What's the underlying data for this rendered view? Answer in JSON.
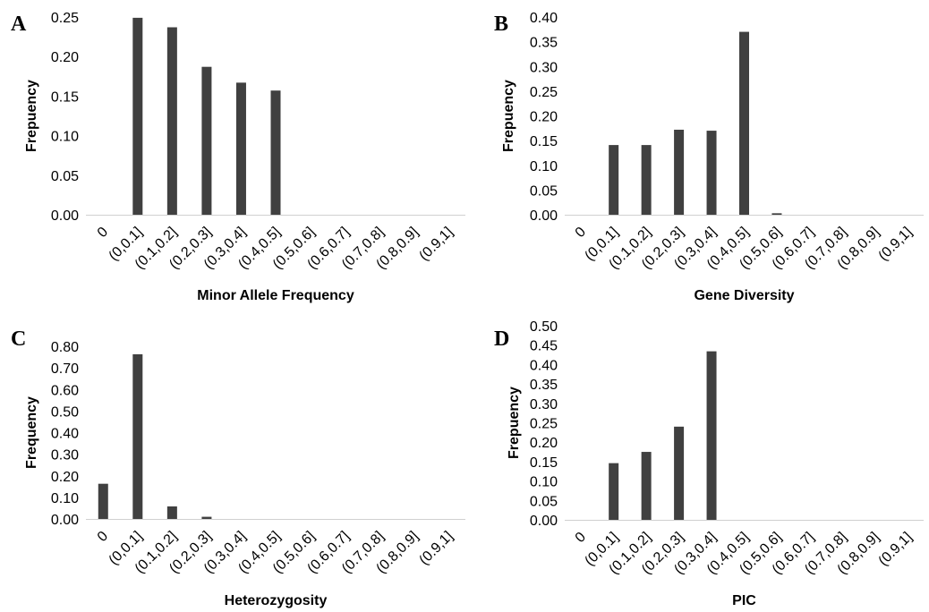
{
  "chart_data": [
    {
      "panel": "A",
      "type": "bar",
      "categories": [
        "0",
        "(0,0.1]",
        "(0.1,0.2]",
        "(0.2,0.3]",
        "(0.3,0.4]",
        "(0.4,0.5]",
        "(0.5,0.6]",
        "(0.6,0.7]",
        "(0.7,0.8]",
        "(0.8,0.9]",
        "(0.9,1]"
      ],
      "values": [
        0,
        0.249,
        0.237,
        0.187,
        0.167,
        0.157,
        0,
        0,
        0,
        0,
        0
      ],
      "xlabel": "Minor Allele Frequency",
      "ylabel": "Frepuency",
      "ylim": [
        0,
        0.25
      ],
      "yticks": [
        "0.00",
        "0.05",
        "0.10",
        "0.15",
        "0.20",
        "0.25"
      ],
      "grid": false,
      "bar_color": "#404040"
    },
    {
      "panel": "B",
      "type": "bar",
      "categories": [
        "0",
        "(0,0.1]",
        "(0.1,0.2]",
        "(0.2,0.3]",
        "(0.3,0.4]",
        "(0.4,0.5]",
        "(0.5,0.6]",
        "(0.6,0.7]",
        "(0.7,0.8]",
        "(0.8,0.9]",
        "(0.9,1]"
      ],
      "values": [
        0,
        0.141,
        0.141,
        0.172,
        0.17,
        0.37,
        0.003,
        0,
        0,
        0,
        0
      ],
      "xlabel": "Gene Diversity",
      "ylabel": "Frepuency",
      "ylim": [
        0,
        0.4
      ],
      "yticks": [
        "0.00",
        "0.05",
        "0.10",
        "0.15",
        "0.20",
        "0.25",
        "0.30",
        "0.35",
        "0.40"
      ],
      "grid": false,
      "bar_color": "#404040"
    },
    {
      "panel": "C",
      "type": "bar",
      "categories": [
        "0",
        "(0,0.1]",
        "(0.1,0.2]",
        "(0.2,0.3]",
        "(0.3,0.4]",
        "(0.4,0.5]",
        "(0.5,0.6]",
        "(0.6,0.7]",
        "(0.7,0.8]",
        "(0.8,0.9]",
        "(0.9,1]"
      ],
      "values": [
        0.163,
        0.763,
        0.058,
        0.01,
        0,
        0,
        0,
        0,
        0,
        0,
        0
      ],
      "xlabel": "Heterozygosity",
      "ylabel": "Frequency",
      "ylim": [
        0,
        0.8
      ],
      "yticks": [
        "0.00",
        "0.10",
        "0.20",
        "0.30",
        "0.40",
        "0.50",
        "0.60",
        "0.70",
        "0.80"
      ],
      "grid": false,
      "bar_color": "#404040"
    },
    {
      "panel": "D",
      "type": "bar",
      "categories": [
        "0",
        "(0,0.1]",
        "(0.1,0.2]",
        "(0.2,0.3]",
        "(0.3,0.4]",
        "(0.4,0.5]",
        "(0.5,0.6]",
        "(0.6,0.7]",
        "(0.7,0.8]",
        "(0.8,0.9]",
        "(0.9,1]"
      ],
      "values": [
        0,
        0.146,
        0.175,
        0.24,
        0.434,
        0,
        0,
        0,
        0,
        0,
        0
      ],
      "xlabel": "PIC",
      "ylabel": "Frepuency",
      "ylim": [
        0,
        0.5
      ],
      "yticks": [
        "0.00",
        "0.05",
        "0.10",
        "0.15",
        "0.20",
        "0.25",
        "0.30",
        "0.35",
        "0.40",
        "0.45",
        "0.50"
      ],
      "grid": false,
      "bar_color": "#404040"
    }
  ]
}
